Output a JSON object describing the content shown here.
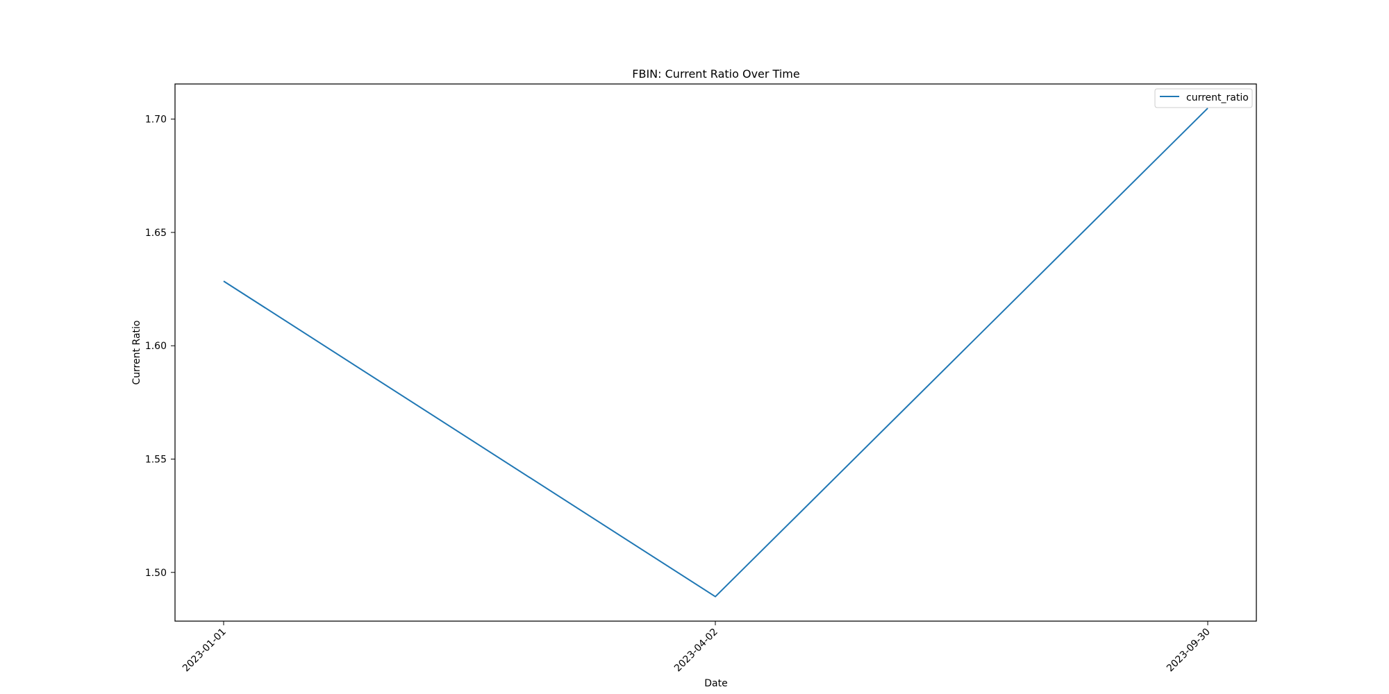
{
  "chart_data": {
    "type": "line",
    "title": "FBIN: Current Ratio Over Time",
    "xlabel": "Date",
    "ylabel": "Current Ratio",
    "x": [
      "2023-01-01",
      "2023-04-02",
      "2023-09-30"
    ],
    "x_tick_labels": [
      "2023-01-01",
      "2023-04-02",
      "2023-09-30"
    ],
    "ylim": [
      1.4785,
      1.7155
    ],
    "y_ticks": [
      1.5,
      1.55,
      1.6,
      1.65,
      1.7
    ],
    "y_tick_labels": [
      "1.50",
      "1.55",
      "1.60",
      "1.65",
      "1.70"
    ],
    "series": [
      {
        "name": "current_ratio",
        "values": [
          1.6285,
          1.4893,
          1.7048
        ],
        "color": "#1f77b4"
      }
    ],
    "legend_position": "top-right",
    "grid": false
  }
}
